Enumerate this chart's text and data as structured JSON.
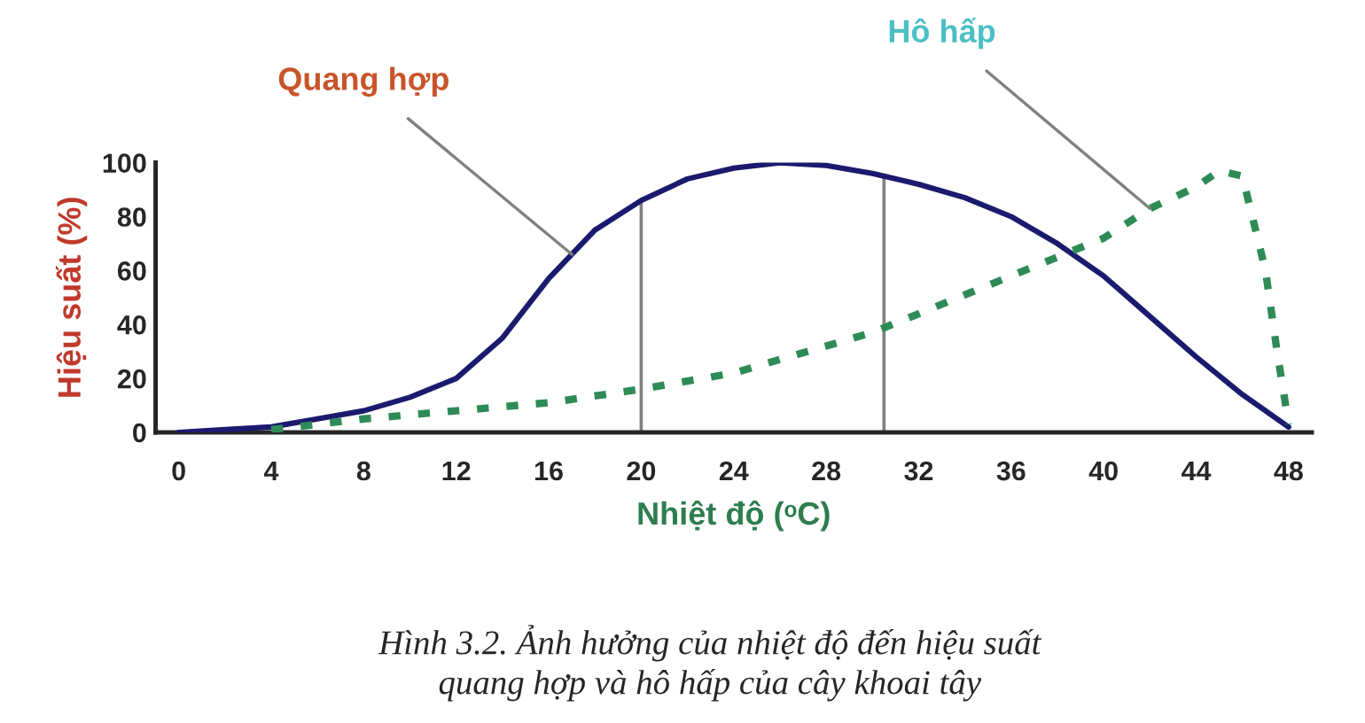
{
  "chart_data": {
    "type": "line",
    "xlabel": "Nhiệt độ (ᵒC)",
    "ylabel": "Hiệu suất (%)",
    "xlim": [
      -1,
      49
    ],
    "xticks": [
      0,
      4,
      8,
      12,
      16,
      20,
      24,
      28,
      32,
      36,
      40,
      44,
      48
    ],
    "ylim": [
      0,
      100
    ],
    "yticks": [
      0,
      20,
      40,
      60,
      80,
      100
    ],
    "grid": false,
    "legend": false,
    "series": [
      {
        "name": "Quang hợp",
        "color": "#1a1a6e",
        "line_style": "solid",
        "x": [
          0,
          2,
          4,
          6,
          8,
          10,
          12,
          14,
          16,
          18,
          20,
          22,
          24,
          26,
          28,
          30,
          32,
          34,
          36,
          38,
          40,
          42,
          44,
          46,
          48
        ],
        "values": [
          0,
          1,
          2,
          5,
          8,
          13,
          20,
          35,
          57,
          75,
          86,
          94,
          98,
          100,
          99,
          96,
          92,
          87,
          80,
          70,
          58,
          43,
          28,
          14,
          2
        ]
      },
      {
        "name": "Hô hấp",
        "color": "#2e8b57",
        "line_style": "dashed",
        "x": [
          4,
          8,
          12,
          16,
          20,
          24,
          28,
          30,
          32,
          36,
          40,
          42,
          44,
          45,
          46,
          47,
          47.5,
          48
        ],
        "values": [
          1,
          5,
          8,
          11,
          16,
          22,
          32,
          37,
          44,
          58,
          72,
          83,
          91,
          97,
          95,
          60,
          30,
          3
        ]
      }
    ],
    "ref_lines": [
      {
        "axis": "x",
        "value": 20,
        "color": "#808080"
      },
      {
        "axis": "x",
        "value": 30.5,
        "color": "#808080"
      }
    ],
    "annotations": [
      "Hình 3.2. Ảnh hưởng của nhiệt độ đến hiệu suất\nquang hợp và hô hấp của cây khoai tây"
    ]
  }
}
